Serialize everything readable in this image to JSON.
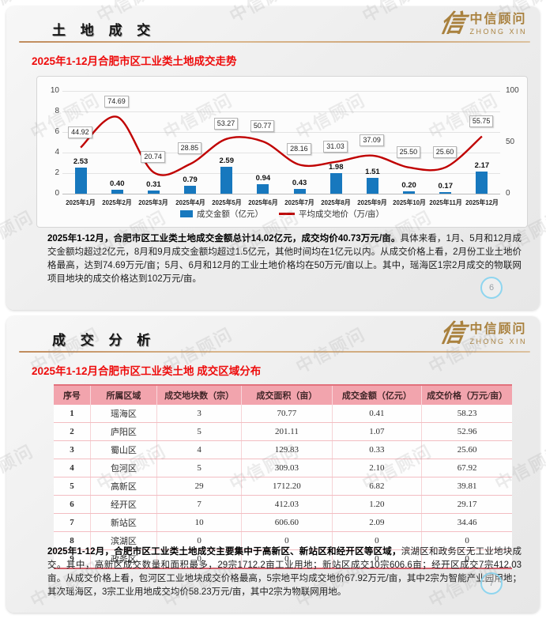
{
  "watermark": {
    "text": "中信顾问"
  },
  "brand": {
    "logo_glyph": "信",
    "name_cn": "中信顾问",
    "name_en": "ZHONG XIN",
    "color": "#a9813e"
  },
  "slide1": {
    "header_title": "土 地 成 交",
    "section_title": "2025年1-12月合肥市区工业类土地成交走势",
    "page_number": "6",
    "analysis_bold": "2025年1-12月，合肥市区工业类土地成交金额总计14.02亿元，成交均价40.73万元/亩。",
    "analysis_regular": "具体来看，1月、5月和12月成交金额均超过2亿元，8月和9月成交金额均超过1.5亿元，其他时间均在1亿元以内。从成交价格上看，2月份工业土地价格最高，达到74.69万元/亩；5月、6月和12月的工业土地价格均在50万元/亩以上。其中，瑶海区1宗2月成交的物联网项目地块的成交价格达到102万元/亩。"
  },
  "chart_data": {
    "type": "bar+line combo",
    "categories": [
      "2025年1月",
      "2025年2月",
      "2025年3月",
      "2025年4月",
      "2025年5月",
      "2025年6月",
      "2025年7月",
      "2025年8月",
      "2025年9月",
      "2025年10月",
      "2025年11月",
      "2025年12月"
    ],
    "series": [
      {
        "name": "成交金额（亿元）",
        "type": "bar",
        "axis": "left",
        "color": "#1778be",
        "values": [
          2.53,
          0.4,
          0.31,
          0.79,
          2.59,
          0.94,
          0.43,
          1.98,
          1.51,
          0.2,
          0.17,
          2.17
        ]
      },
      {
        "name": "平均成交地价（万/亩）",
        "type": "line",
        "axis": "right",
        "color": "#c00000",
        "values": [
          44.92,
          74.69,
          20.74,
          28.85,
          53.27,
          50.77,
          28.16,
          31.03,
          37.09,
          25.5,
          25.6,
          55.75
        ]
      }
    ],
    "left_axis": {
      "min": 0,
      "max": 10,
      "ticks": [
        0,
        2,
        4,
        6,
        8,
        10
      ]
    },
    "right_axis": {
      "min": 0,
      "max": 100,
      "ticks": [
        0,
        50,
        100
      ]
    },
    "grid": true,
    "legend_position": "bottom"
  },
  "slide2": {
    "header_title": "成 交 分 析",
    "section_title": "2025年1-12月合肥市区工业类土地 成交区域分布",
    "page_number": "7",
    "table": {
      "headers": [
        "序号",
        "所属区域",
        "成交地块数（宗）",
        "成交面积（亩）",
        "成交金额（亿元）",
        "成交价格（万元/亩）"
      ],
      "col_widths": [
        "8%",
        "14.5%",
        "18.5%",
        "19.7%",
        "19.6%",
        "19.7%"
      ],
      "rows": [
        [
          "1",
          "瑶海区",
          "3",
          "70.77",
          "0.41",
          "58.23"
        ],
        [
          "2",
          "庐阳区",
          "5",
          "201.11",
          "1.07",
          "52.96"
        ],
        [
          "3",
          "蜀山区",
          "4",
          "129.83",
          "0.33",
          "25.60"
        ],
        [
          "4",
          "包河区",
          "5",
          "309.03",
          "2.10",
          "67.92"
        ],
        [
          "5",
          "高新区",
          "29",
          "1712.20",
          "6.82",
          "39.81"
        ],
        [
          "6",
          "经开区",
          "7",
          "412.03",
          "1.20",
          "29.17"
        ],
        [
          "7",
          "新站区",
          "10",
          "606.60",
          "2.09",
          "34.46"
        ],
        [
          "8",
          "滨湖区",
          "0",
          "0",
          "0",
          "0"
        ],
        [
          "9",
          "政务区",
          "0",
          "0",
          "0",
          "0"
        ]
      ]
    },
    "analysis_bold": "2025年1-12月，合肥市区工业类土地成交主要集中于高新区、新站区和经开区等区域，",
    "analysis_regular": "滨湖区和政务区无工业地块成交。其中，高新区成交数量和面积最多，29宗1712.2亩工业用地；新站区成交10宗606.6亩；经开区成交7宗412.03亩。从成交价格上看，包河区工业地块成交价格最高，5宗地平均成交地价67.92万元/亩，其中2宗为智能产业园用地；其次瑶海区，3宗工业用地成交均价58.23万元/亩，其中2宗为物联网用地。"
  }
}
